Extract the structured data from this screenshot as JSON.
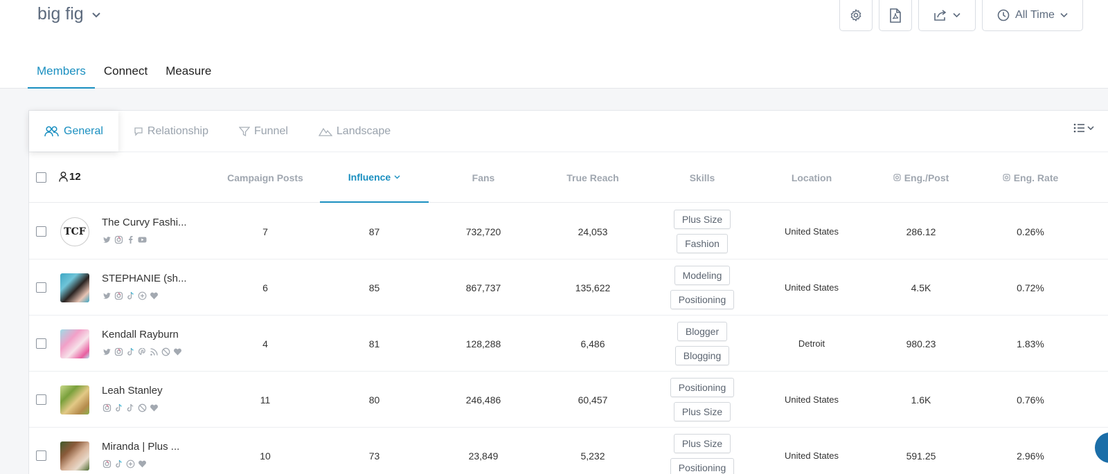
{
  "header": {
    "brand": "big fig",
    "time_filter": "All Time"
  },
  "main_tabs": [
    {
      "label": "Members",
      "active": true
    },
    {
      "label": "Connect",
      "active": false
    },
    {
      "label": "Measure",
      "active": false
    }
  ],
  "sub_tabs": [
    {
      "label": "General",
      "icon": "users-icon",
      "active": true
    },
    {
      "label": "Relationship",
      "icon": "chat-icon",
      "active": false
    },
    {
      "label": "Funnel",
      "icon": "funnel-icon",
      "active": false
    },
    {
      "label": "Landscape",
      "icon": "mountain-icon",
      "active": false
    }
  ],
  "table": {
    "member_count": "12",
    "columns": {
      "campaign_posts": "Campaign Posts",
      "influence": "Influence",
      "fans": "Fans",
      "true_reach": "True Reach",
      "skills": "Skills",
      "location": "Location",
      "eng_post": "Eng./Post",
      "eng_rate": "Eng. Rate"
    },
    "sorted_by": "influence",
    "rows": [
      {
        "name": "The Curvy Fashi...",
        "avatar_text": "TCF",
        "socials": [
          "twitter",
          "instagram",
          "facebook",
          "youtube"
        ],
        "campaign_posts": "7",
        "influence": "87",
        "fans": "732,720",
        "true_reach": "24,053",
        "skills": [
          "Plus Size",
          "Fashion"
        ],
        "location": "United States",
        "eng_post": "286.12",
        "eng_rate": "0.26%"
      },
      {
        "name": "STEPHANIE (sh...",
        "avatar_text": "",
        "socials": [
          "twitter",
          "instagram",
          "tiktok",
          "plus",
          "heart"
        ],
        "campaign_posts": "6",
        "influence": "85",
        "fans": "867,737",
        "true_reach": "135,622",
        "skills": [
          "Modeling",
          "Positioning"
        ],
        "location": "United States",
        "eng_post": "4.5K",
        "eng_rate": "0.72%"
      },
      {
        "name": "Kendall Rayburn",
        "avatar_text": "",
        "socials": [
          "twitter",
          "instagram",
          "tiktok",
          "pinterest",
          "rss",
          "blocked",
          "heart"
        ],
        "campaign_posts": "4",
        "influence": "81",
        "fans": "128,288",
        "true_reach": "6,486",
        "skills": [
          "Blogger",
          "Blogging"
        ],
        "location": "Detroit",
        "eng_post": "980.23",
        "eng_rate": "1.83%"
      },
      {
        "name": "Leah Stanley",
        "avatar_text": "",
        "socials": [
          "instagram",
          "tiktok",
          "tiktok2",
          "blocked",
          "heart"
        ],
        "campaign_posts": "11",
        "influence": "80",
        "fans": "246,486",
        "true_reach": "60,457",
        "skills": [
          "Positioning",
          "Plus Size"
        ],
        "location": "United States",
        "eng_post": "1.6K",
        "eng_rate": "0.76%"
      },
      {
        "name": "Miranda | Plus ...",
        "avatar_text": "",
        "socials": [
          "instagram",
          "tiktok",
          "plus",
          "heart"
        ],
        "campaign_posts": "10",
        "influence": "73",
        "fans": "23,849",
        "true_reach": "5,232",
        "skills": [
          "Plus Size",
          "Positioning"
        ],
        "location": "United States",
        "eng_post": "591.25",
        "eng_rate": "2.96%"
      }
    ]
  },
  "colors": {
    "accent": "#1a8fc0",
    "muted_text": "#a0a7b0",
    "background": "#f5f6f8"
  }
}
